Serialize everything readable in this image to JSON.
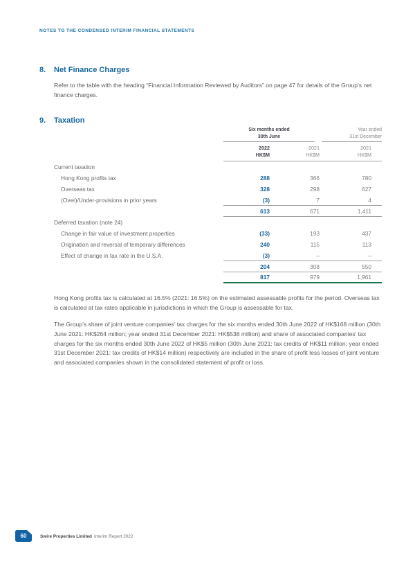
{
  "colors": {
    "heading_blue": "#1a689f",
    "report_header_blue": "#2374a6",
    "value_blue": "#1d6398",
    "table_rule_gray": "#9da0a3",
    "total_rule_green": "#17764a",
    "badge_blue": "#1263a5"
  },
  "report_header": {
    "title": "NOTES TO THE CONDENSED INTERIM FINANCIAL STATEMENTS"
  },
  "section8": {
    "number": "8.",
    "title": "Net Finance Charges",
    "paragraph": "Refer to the table with the heading “Financial Information Reviewed by Auditors” on page 47 for details of the Group’s net finance charges."
  },
  "section9": {
    "number": "9.",
    "title": "Taxation",
    "table": {
      "group_headers": [
        {
          "line1": "Six months ended",
          "line2": "30th June"
        },
        {
          "line1": "Year ended",
          "line2": "31st December"
        }
      ],
      "column_headers": [
        {
          "year": "2022",
          "unit": "HK$M"
        },
        {
          "year": "2021",
          "unit": "HK$M"
        },
        {
          "year": "2021",
          "unit": "HK$M"
        }
      ],
      "rows": [
        {
          "label": "Current taxation",
          "values": [
            "",
            "",
            ""
          ]
        },
        {
          "label": "Hong Kong profits tax",
          "values": [
            "288",
            "366",
            "780"
          ]
        },
        {
          "label": "Overseas tax",
          "values": [
            "328",
            "298",
            "627"
          ]
        },
        {
          "label": "(Over)/Under-provisions in prior years",
          "values": [
            "(3)",
            "7",
            "4"
          ]
        },
        {
          "label": "",
          "values": [
            "613",
            "671",
            "1,411"
          ]
        },
        {
          "label": "Deferred taxation (note 24)",
          "values": [
            "",
            "",
            ""
          ]
        },
        {
          "label": "Change in fair value of investment properties",
          "values": [
            "(33)",
            "193",
            "437"
          ]
        },
        {
          "label": "Origination and reversal of temporary differences",
          "values": [
            "240",
            "115",
            "113"
          ]
        },
        {
          "label": "Effect of change in tax rate in the U.S.A.",
          "values": [
            "(3)",
            "–",
            "–"
          ]
        },
        {
          "label": "",
          "values": [
            "204",
            "308",
            "550"
          ]
        },
        {
          "label": "",
          "values": [
            "817",
            "979",
            "1,961"
          ]
        }
      ]
    },
    "paragraphs": [
      "Hong Kong profits tax is calculated at 16.5% (2021: 16.5%) on the estimated assessable profits for the period. Overseas tax is calculated at tax rates applicable in jurisdictions in which the Group is assessable for tax.",
      "The Group’s share of joint venture companies’ tax charges for the six months ended 30th June 2022 of HK$168 million (30th June 2021: HK$264 million; year ended 31st December 2021: HK$538 million) and share of associated companies’ tax charges for the six months ended 30th June 2022 of HK$5 million (30th June 2021: tax credits of HK$11 million; year ended 31st December 2021: tax credits of HK$14 million) respectively are included in the share of profit less losses of joint venture and associated companies shown in the consolidated statement of profit or loss."
    ]
  },
  "footer": {
    "page_number": "60",
    "company": "Swire Properties Limited",
    "report_title": "Interim Report 2022"
  }
}
